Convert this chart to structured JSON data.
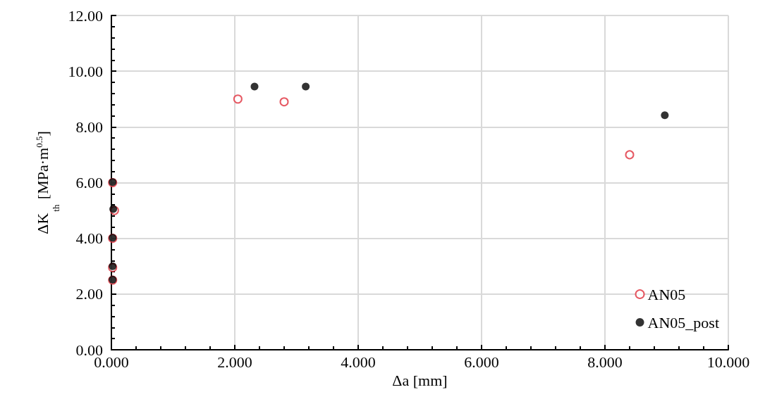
{
  "chart_data": {
    "type": "scatter",
    "xlabel": "Δa [mm]",
    "ylabel": "ΔK$_{th}$ [MPa·m$^{0.5}$]",
    "xlim": [
      0,
      10
    ],
    "xticks": [
      {
        "value": 0,
        "label": "0.000"
      },
      {
        "value": 2,
        "label": "2.000"
      },
      {
        "value": 4,
        "label": "4.000"
      },
      {
        "value": 6,
        "label": "6.000"
      },
      {
        "value": 8,
        "label": "8.000"
      },
      {
        "value": 10,
        "label": "10.000"
      }
    ],
    "ylim": [
      0,
      12
    ],
    "yticks": [
      {
        "value": 0,
        "label": "0.00"
      },
      {
        "value": 2,
        "label": "2.00"
      },
      {
        "value": 4,
        "label": "4.00"
      },
      {
        "value": 6,
        "label": "6.00"
      },
      {
        "value": 8,
        "label": "8.00"
      },
      {
        "value": 10,
        "label": "10.00"
      },
      {
        "value": 12,
        "label": "12.00"
      }
    ],
    "grid": true,
    "legend": "bottom right",
    "marker": "circle",
    "series": [
      {
        "name": "AN05",
        "color": "#e0303c",
        "x": [
          0.02,
          0.05,
          0.02,
          0.02,
          0.02,
          2.05,
          2.8,
          8.4
        ],
        "values": [
          6.0,
          5.0,
          4.0,
          2.95,
          2.5,
          9.0,
          8.9,
          7.0
        ]
      },
      {
        "name": "AN05_post",
        "color": "#000000",
        "x": [
          0.02,
          0.03,
          0.02,
          0.02,
          0.02,
          2.32,
          3.15,
          8.97
        ],
        "values": [
          6.02,
          5.05,
          4.02,
          3.0,
          2.52,
          9.45,
          9.45,
          8.42
        ]
      }
    ]
  }
}
